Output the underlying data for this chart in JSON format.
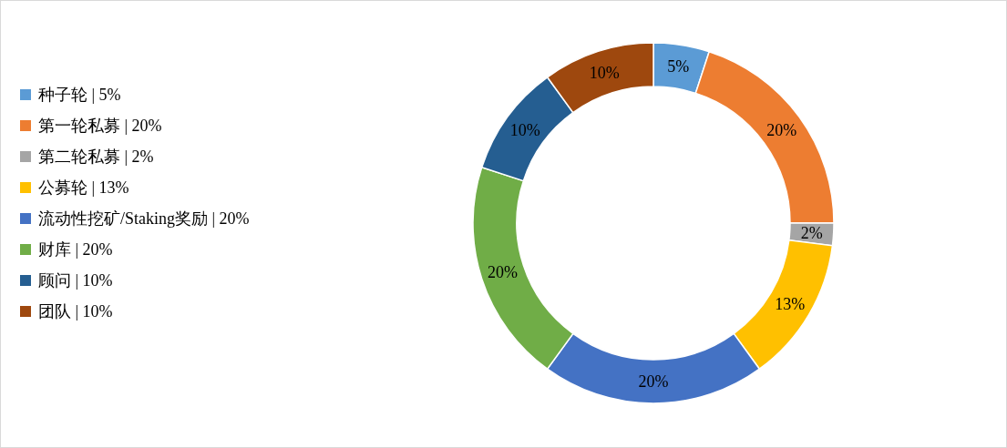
{
  "chart_data": {
    "type": "donut",
    "legend": "left",
    "categories": [
      "种子轮 | 5%",
      "第一轮私募 | 20%",
      "第二轮私募 | 2%",
      "公募轮 | 13%",
      "流动性挖矿/Staking奖励 | 20%",
      "财库 | 20%",
      "顾问 | 10%",
      "团队 | 10%"
    ],
    "values": [
      5,
      20,
      2,
      13,
      20,
      20,
      10,
      10
    ],
    "value_labels": [
      "5%",
      "20%",
      "2%",
      "13%",
      "20%",
      "20%",
      "10%",
      "10%"
    ],
    "colors": [
      "#5b9bd5",
      "#ed7d31",
      "#a5a5a5",
      "#ffc000",
      "#4472c4",
      "#70ad47",
      "#255e91",
      "#9e480e"
    ]
  }
}
